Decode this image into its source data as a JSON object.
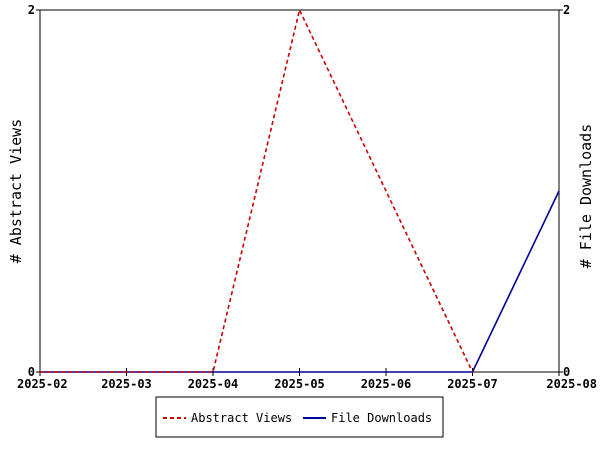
{
  "chart_data": {
    "type": "line",
    "x": [
      "2025-02",
      "2025-03",
      "2025-04",
      "2025-05",
      "2025-06",
      "2025-07",
      "2025-08"
    ],
    "series": [
      {
        "name": "Abstract Views",
        "axis": "left",
        "color": "#cc0000",
        "dash": true,
        "values": [
          0,
          0,
          0,
          2,
          1,
          0,
          null
        ]
      },
      {
        "name": "File Downloads",
        "axis": "right",
        "color": "#000099",
        "dash": false,
        "values": [
          0,
          0,
          0,
          0,
          0,
          0,
          1
        ]
      }
    ],
    "y_left": {
      "label": "# Abstract Views",
      "range": [
        0,
        2
      ],
      "ticks": [
        "0",
        "2"
      ]
    },
    "y_right": {
      "label": "# File Downloads",
      "range": [
        0,
        2
      ],
      "ticks": [
        "0",
        "2"
      ]
    },
    "grid": false,
    "legend_position": "bottom-center",
    "title": "",
    "xlabel": ""
  }
}
